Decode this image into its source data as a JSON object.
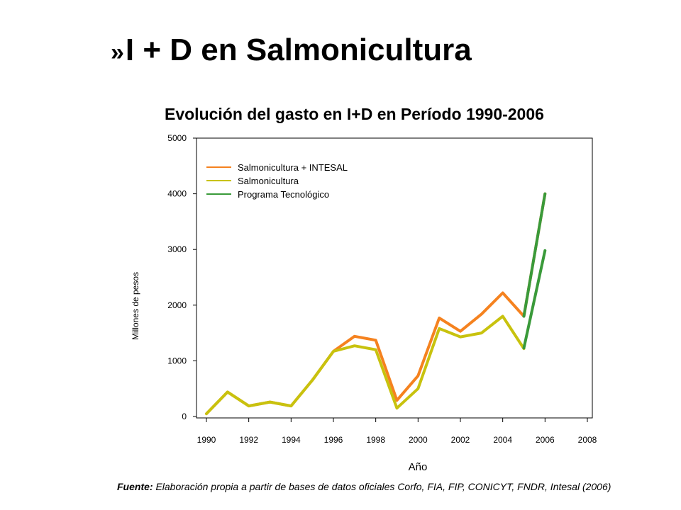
{
  "slide": {
    "bullet": "»",
    "title": "I + D en Salmonicultura"
  },
  "source": {
    "label": "Fuente:",
    "text": " Elaboración propia a partir de  bases de datos oficiales Corfo, FIA, FIP, CONICYT, FNDR, Intesal (2006)"
  },
  "colors": {
    "salmonicultura_intesal": "#f5821f",
    "salmonicultura": "#c8c20e",
    "programa_tecnologico": "#3a9a3a"
  },
  "chart_data": {
    "type": "line",
    "title": "Evolución del gasto en I+D en Período 1990-2006",
    "xlabel": "Año",
    "ylabel": "Millones de pesos",
    "xlim": [
      1990,
      2008
    ],
    "ylim": [
      0,
      5000
    ],
    "xticks": [
      "1990",
      "1992",
      "1994",
      "1996",
      "1998",
      "2000",
      "2002",
      "2004",
      "2006",
      "2008"
    ],
    "yticks": [
      "0",
      "1000",
      "2000",
      "3000",
      "4000",
      "5000"
    ],
    "legend_position": "top-left",
    "series": [
      {
        "name": "Salmonicultura + INTESAL",
        "color": "#f5821f",
        "x": [
          1990,
          1991,
          1992,
          1993,
          1994,
          1995,
          1996,
          1997,
          1998,
          1999,
          2000,
          2001,
          2002,
          2003,
          2004,
          2005,
          2006
        ],
        "y": [
          50,
          440,
          190,
          260,
          190,
          650,
          1170,
          1440,
          1370,
          290,
          730,
          1770,
          1530,
          1840,
          2220,
          1800,
          4000
        ]
      },
      {
        "name": "Salmonicultura",
        "color": "#c8c20e",
        "x": [
          1990,
          1991,
          1992,
          1993,
          1994,
          1995,
          1996,
          1997,
          1998,
          1999,
          2000,
          2001,
          2002,
          2003,
          2004,
          2005
        ],
        "y": [
          50,
          440,
          190,
          260,
          190,
          650,
          1170,
          1270,
          1200,
          150,
          500,
          1580,
          1430,
          1500,
          1800,
          1220
        ]
      },
      {
        "name": "Programa Tecnológico",
        "color": "#3a9a3a",
        "segments": [
          {
            "x": [
              2005,
              2006
            ],
            "y": [
              1800,
              4000
            ]
          },
          {
            "x": [
              2005,
              2006
            ],
            "y": [
              1230,
              2980
            ]
          }
        ]
      }
    ]
  }
}
